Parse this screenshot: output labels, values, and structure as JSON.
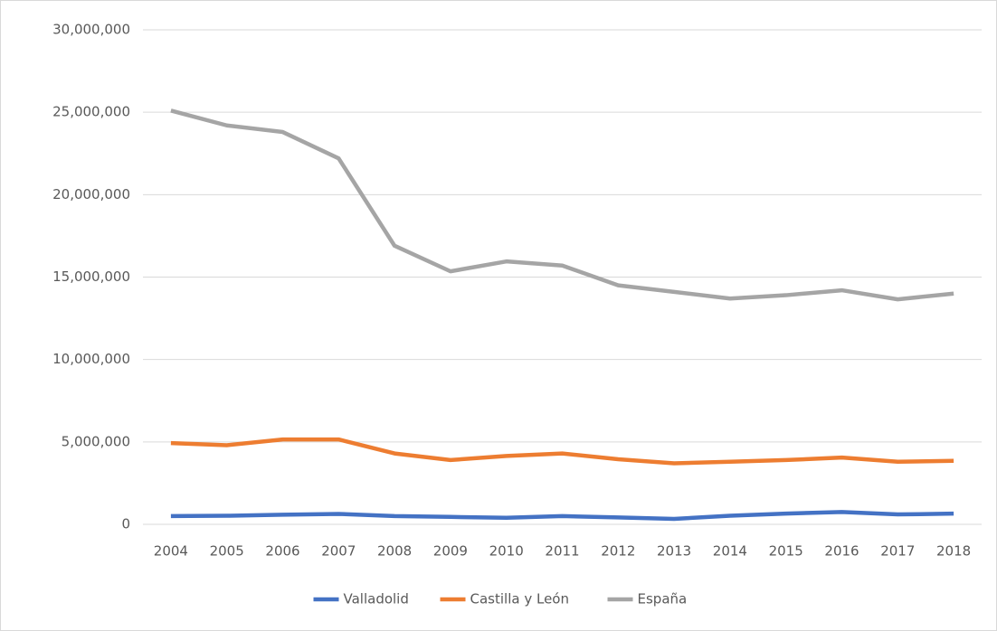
{
  "chart_data": {
    "type": "line",
    "categories": [
      "2004",
      "2005",
      "2006",
      "2007",
      "2008",
      "2009",
      "2010",
      "2011",
      "2012",
      "2013",
      "2014",
      "2015",
      "2016",
      "2017",
      "2018"
    ],
    "series": [
      {
        "name": "Valladolid",
        "color": "#4472c4",
        "values": [
          500000,
          520000,
          580000,
          630000,
          500000,
          450000,
          400000,
          500000,
          420000,
          330000,
          520000,
          650000,
          750000,
          600000,
          650000
        ]
      },
      {
        "name": "Castilla y León",
        "color": "#ed7d31",
        "values": [
          4930000,
          4800000,
          5150000,
          5150000,
          4300000,
          3900000,
          4150000,
          4300000,
          3950000,
          3700000,
          3800000,
          3900000,
          4050000,
          3800000,
          3850000
        ]
      },
      {
        "name": "España",
        "color": "#a5a5a5",
        "values": [
          25100000,
          24200000,
          23800000,
          22200000,
          16900000,
          15350000,
          15950000,
          15700000,
          14500000,
          14100000,
          13700000,
          13900000,
          14200000,
          13650000,
          14000000
        ]
      }
    ],
    "ylim": [
      0,
      30000000
    ],
    "yticks": [
      0,
      {
        "value": 5000000,
        "label": "5,000,000"
      },
      {
        "value": 10000000,
        "label": "10,000,000"
      },
      {
        "value": 15000000,
        "label": "15,000,000"
      },
      {
        "value": 20000000,
        "label": "20,000,000"
      },
      {
        "value": 25000000,
        "label": "25,000,000"
      },
      {
        "value": 30000000,
        "label": "30,000,000"
      }
    ],
    "grid": true,
    "legend": "bottom"
  }
}
